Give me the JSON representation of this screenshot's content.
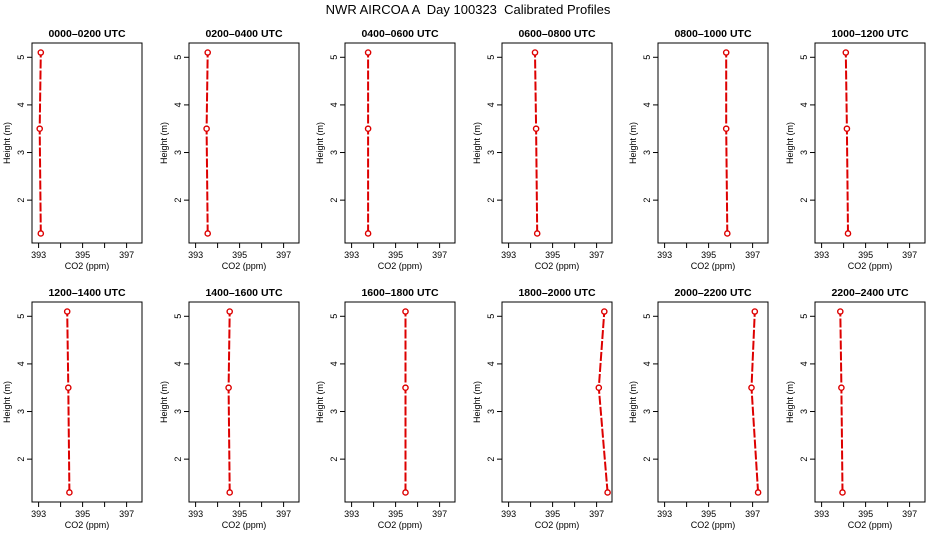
{
  "title": "NWR AIRCOA A  Day 100323  Calibrated Profiles",
  "colors": {
    "series": "#dd0000",
    "axis": "#000000",
    "background": "#ffffff"
  },
  "chart_data": [
    {
      "type": "line",
      "title": "0000–0200 UTC",
      "xlabel": "CO2 (ppm)",
      "ylabel": "Height (m)",
      "xlim": [
        392.7,
        397.7
      ],
      "ylim": [
        1.1,
        5.3
      ],
      "xticks": [
        393,
        394,
        395,
        396,
        397
      ],
      "xticklabels": [
        "393",
        "",
        "395",
        "",
        "397"
      ],
      "yticks": [
        2,
        3,
        4,
        5
      ],
      "yticklabels": [
        "2",
        "3",
        "4",
        "5"
      ],
      "x": [
        393.1,
        393.05,
        393.1
      ],
      "y": [
        1.3,
        3.5,
        5.1
      ]
    },
    {
      "type": "line",
      "title": "0200–0400 UTC",
      "xlabel": "CO2 (ppm)",
      "ylabel": "Height (m)",
      "xlim": [
        392.7,
        397.7
      ],
      "ylim": [
        1.1,
        5.3
      ],
      "xticks": [
        393,
        394,
        395,
        396,
        397
      ],
      "xticklabels": [
        "393",
        "",
        "395",
        "",
        "397"
      ],
      "yticks": [
        2,
        3,
        4,
        5
      ],
      "yticklabels": [
        "2",
        "3",
        "4",
        "5"
      ],
      "x": [
        393.55,
        393.5,
        393.55
      ],
      "y": [
        1.3,
        3.5,
        5.1
      ]
    },
    {
      "type": "line",
      "title": "0400–0600 UTC",
      "xlabel": "CO2 (ppm)",
      "ylabel": "Height (m)",
      "xlim": [
        392.7,
        397.7
      ],
      "ylim": [
        1.1,
        5.3
      ],
      "xticks": [
        393,
        394,
        395,
        396,
        397
      ],
      "xticklabels": [
        "393",
        "",
        "395",
        "",
        "397"
      ],
      "yticks": [
        2,
        3,
        4,
        5
      ],
      "yticklabels": [
        "2",
        "3",
        "4",
        "5"
      ],
      "x": [
        393.75,
        393.75,
        393.75
      ],
      "y": [
        1.3,
        3.5,
        5.1
      ]
    },
    {
      "type": "line",
      "title": "0600–0800 UTC",
      "xlabel": "CO2 (ppm)",
      "ylabel": "Height (m)",
      "xlim": [
        392.7,
        397.7
      ],
      "ylim": [
        1.1,
        5.3
      ],
      "xticks": [
        393,
        394,
        395,
        396,
        397
      ],
      "xticklabels": [
        "393",
        "",
        "395",
        "",
        "397"
      ],
      "yticks": [
        2,
        3,
        4,
        5
      ],
      "yticklabels": [
        "2",
        "3",
        "4",
        "5"
      ],
      "x": [
        394.3,
        394.25,
        394.2
      ],
      "y": [
        1.3,
        3.5,
        5.1
      ]
    },
    {
      "type": "line",
      "title": "0800–1000 UTC",
      "xlabel": "CO2 (ppm)",
      "ylabel": "Height (m)",
      "xlim": [
        392.7,
        397.7
      ],
      "ylim": [
        1.1,
        5.3
      ],
      "xticks": [
        393,
        394,
        395,
        396,
        397
      ],
      "xticklabels": [
        "393",
        "",
        "395",
        "",
        "397"
      ],
      "yticks": [
        2,
        3,
        4,
        5
      ],
      "yticklabels": [
        "2",
        "3",
        "4",
        "5"
      ],
      "x": [
        395.85,
        395.8,
        395.8
      ],
      "y": [
        1.3,
        3.5,
        5.1
      ]
    },
    {
      "type": "line",
      "title": "1000–1200 UTC",
      "xlabel": "CO2 (ppm)",
      "ylabel": "Height (m)",
      "xlim": [
        392.7,
        397.7
      ],
      "ylim": [
        1.1,
        5.3
      ],
      "xticks": [
        393,
        394,
        395,
        396,
        397
      ],
      "xticklabels": [
        "393",
        "",
        "395",
        "",
        "397"
      ],
      "yticks": [
        2,
        3,
        4,
        5
      ],
      "yticklabels": [
        "2",
        "3",
        "4",
        "5"
      ],
      "x": [
        394.2,
        394.15,
        394.1
      ],
      "y": [
        1.3,
        3.5,
        5.1
      ]
    },
    {
      "type": "line",
      "title": "1200–1400 UTC",
      "xlabel": "CO2 (ppm)",
      "ylabel": "Height (m)",
      "xlim": [
        392.7,
        397.7
      ],
      "ylim": [
        1.1,
        5.3
      ],
      "xticks": [
        393,
        394,
        395,
        396,
        397
      ],
      "xticklabels": [
        "393",
        "",
        "395",
        "",
        "397"
      ],
      "yticks": [
        2,
        3,
        4,
        5
      ],
      "yticklabels": [
        "2",
        "3",
        "4",
        "5"
      ],
      "x": [
        394.4,
        394.35,
        394.3
      ],
      "y": [
        1.3,
        3.5,
        5.1
      ]
    },
    {
      "type": "line",
      "title": "1400–1600 UTC",
      "xlabel": "CO2 (ppm)",
      "ylabel": "Height (m)",
      "xlim": [
        392.7,
        397.7
      ],
      "ylim": [
        1.1,
        5.3
      ],
      "xticks": [
        393,
        394,
        395,
        396,
        397
      ],
      "xticklabels": [
        "393",
        "",
        "395",
        "",
        "397"
      ],
      "yticks": [
        2,
        3,
        4,
        5
      ],
      "yticklabels": [
        "2",
        "3",
        "4",
        "5"
      ],
      "x": [
        394.55,
        394.5,
        394.55
      ],
      "y": [
        1.3,
        3.5,
        5.1
      ]
    },
    {
      "type": "line",
      "title": "1600–1800 UTC",
      "xlabel": "CO2 (ppm)",
      "ylabel": "Height (m)",
      "xlim": [
        392.7,
        397.7
      ],
      "ylim": [
        1.1,
        5.3
      ],
      "xticks": [
        393,
        394,
        395,
        396,
        397
      ],
      "xticklabels": [
        "393",
        "",
        "395",
        "",
        "397"
      ],
      "yticks": [
        2,
        3,
        4,
        5
      ],
      "yticklabels": [
        "2",
        "3",
        "4",
        "5"
      ],
      "x": [
        395.45,
        395.45,
        395.45
      ],
      "y": [
        1.3,
        3.5,
        5.1
      ]
    },
    {
      "type": "line",
      "title": "1800–2000 UTC",
      "xlabel": "CO2 (ppm)",
      "ylabel": "Height (m)",
      "xlim": [
        392.7,
        397.7
      ],
      "ylim": [
        1.1,
        5.3
      ],
      "xticks": [
        393,
        394,
        395,
        396,
        397
      ],
      "xticklabels": [
        "393",
        "",
        "395",
        "",
        "397"
      ],
      "yticks": [
        2,
        3,
        4,
        5
      ],
      "yticklabels": [
        "2",
        "3",
        "4",
        "5"
      ],
      "x": [
        397.5,
        397.1,
        397.35
      ],
      "y": [
        1.3,
        3.5,
        5.1
      ]
    },
    {
      "type": "line",
      "title": "2000–2200 UTC",
      "xlabel": "CO2 (ppm)",
      "ylabel": "Height (m)",
      "xlim": [
        392.7,
        397.7
      ],
      "ylim": [
        1.1,
        5.3
      ],
      "xticks": [
        393,
        394,
        395,
        396,
        397
      ],
      "xticklabels": [
        "393",
        "",
        "395",
        "",
        "397"
      ],
      "yticks": [
        2,
        3,
        4,
        5
      ],
      "yticklabels": [
        "2",
        "3",
        "4",
        "5"
      ],
      "x": [
        397.25,
        396.95,
        397.1
      ],
      "y": [
        1.3,
        3.5,
        5.1
      ]
    },
    {
      "type": "line",
      "title": "2200–2400 UTC",
      "xlabel": "CO2 (ppm)",
      "ylabel": "Height (m)",
      "xlim": [
        392.7,
        397.7
      ],
      "ylim": [
        1.1,
        5.3
      ],
      "xticks": [
        393,
        394,
        395,
        396,
        397
      ],
      "xticklabels": [
        "393",
        "",
        "395",
        "",
        "397"
      ],
      "yticks": [
        2,
        3,
        4,
        5
      ],
      "yticklabels": [
        "2",
        "3",
        "4",
        "5"
      ],
      "x": [
        393.95,
        393.9,
        393.85
      ],
      "y": [
        1.3,
        3.5,
        5.1
      ]
    }
  ]
}
